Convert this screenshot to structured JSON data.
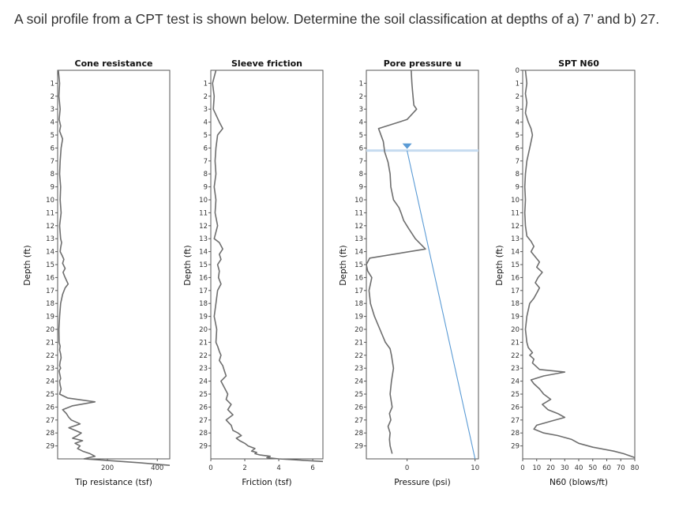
{
  "question": "A soil profile from a CPT test is shown below. Determine the soil classification at depths of a) 7’ and b) 27.",
  "colors": {
    "trace": "#6e6e6e",
    "hydrostatic": "#5b9bd5",
    "water_table": "#5b9bd5",
    "water_table_line": "#c6dcf0"
  },
  "chart_data": [
    {
      "type": "line",
      "title": "Cone resistance",
      "xlabel": "Tip resistance (tsf)",
      "ylabel": "Depth (ft)",
      "xlim": [
        0,
        450
      ],
      "ylim": [
        0,
        30
      ],
      "xticks": [
        {
          "v": 200,
          "label": "200"
        },
        {
          "v": 400,
          "label": "400"
        }
      ],
      "yticks": [
        1,
        2,
        3,
        4,
        5,
        6,
        7,
        8,
        9,
        10,
        11,
        12,
        13,
        14,
        15,
        16,
        17,
        18,
        19,
        20,
        21,
        22,
        23,
        24,
        25,
        26,
        27,
        28,
        29
      ],
      "series": [
        {
          "x": [
            3,
            8,
            5,
            10,
            6,
            12,
            8,
            20,
            14,
            10,
            8,
            12,
            10,
            14,
            8,
            12,
            16,
            12,
            10,
            18,
            25,
            20,
            30,
            22,
            28,
            35,
            42,
            30,
            20,
            12,
            8,
            5,
            6,
            10,
            8,
            12,
            14,
            10,
            8,
            12,
            6,
            8,
            10,
            12,
            8,
            10,
            14,
            8,
            40,
            150,
            60,
            20,
            35,
            45,
            55,
            90,
            45,
            70,
            95,
            80,
            60,
            100,
            70,
            90,
            80,
            100,
            130,
            150,
            105,
            180,
            330,
            450
          ],
          "y": [
            0,
            1,
            2,
            3,
            3.8,
            4.3,
            4.7,
            5.3,
            6,
            7,
            8,
            9,
            10,
            11,
            12,
            13,
            13.3,
            13.7,
            14,
            14.3,
            14.6,
            14.9,
            15.3,
            15.6,
            15.9,
            16.2,
            16.5,
            16.8,
            17.3,
            18,
            19,
            20,
            21,
            21.3,
            21.6,
            21.9,
            22.2,
            22.5,
            22.8,
            23,
            23.2,
            23.4,
            23.6,
            23.8,
            24,
            24.3,
            24.6,
            25,
            25.3,
            25.6,
            25.9,
            26.2,
            26.5,
            26.8,
            27,
            27.3,
            27.6,
            27.8,
            28,
            28.2,
            28.4,
            28.6,
            28.8,
            29,
            29.2,
            29.4,
            29.6,
            29.8,
            30,
            30.1,
            30.3,
            30.5
          ]
        }
      ]
    },
    {
      "type": "line",
      "title": "Sleeve friction",
      "xlabel": "Friction (tsf)",
      "ylabel": "Depth (ft)",
      "xlim": [
        0,
        6.6
      ],
      "ylim": [
        0,
        30
      ],
      "xticks": [
        {
          "v": 0,
          "label": "0"
        },
        {
          "v": 2,
          "label": "2"
        },
        {
          "v": 4,
          "label": "4"
        },
        {
          "v": 6,
          "label": "6"
        }
      ],
      "yticks": [
        1,
        2,
        3,
        4,
        5,
        6,
        7,
        8,
        9,
        10,
        11,
        12,
        13,
        14,
        15,
        16,
        17,
        18,
        19,
        20,
        21,
        22,
        23,
        24,
        25,
        26,
        27,
        28,
        29
      ],
      "series": [
        {
          "x": [
            0.3,
            0.1,
            0.2,
            0.15,
            0.5,
            0.7,
            0.4,
            0.3,
            0.25,
            0.3,
            0.2,
            0.3,
            0.25,
            0.4,
            0.2,
            0.5,
            0.7,
            0.5,
            0.6,
            0.4,
            0.5,
            0.45,
            0.6,
            0.4,
            0.3,
            0.2,
            0.35,
            0.3,
            0.4,
            0.5,
            0.6,
            0.5,
            0.7,
            0.8,
            0.9,
            0.6,
            0.8,
            1.0,
            0.9,
            1.2,
            1.0,
            1.3,
            0.9,
            1.2,
            1.3,
            1.6,
            1.8,
            1.5,
            1.7,
            2.0,
            2.2,
            2.6,
            2.4,
            2.7,
            2.6,
            2.9,
            3.5,
            3.3,
            4.0,
            6.6
          ],
          "y": [
            0,
            1,
            2,
            3,
            4,
            4.5,
            5,
            6,
            7,
            8,
            9,
            10,
            11,
            12,
            13,
            13.3,
            13.8,
            14.2,
            14.6,
            15,
            15.5,
            16,
            16.5,
            17,
            18,
            19,
            20,
            21,
            21.3,
            21.7,
            22,
            22.4,
            22.8,
            23.2,
            23.6,
            24,
            24.5,
            25,
            25.4,
            25.8,
            26.2,
            26.6,
            27,
            27.4,
            27.8,
            28,
            28.2,
            28.4,
            28.6,
            28.8,
            29,
            29.2,
            29.4,
            29.5,
            29.6,
            29.7,
            29.8,
            29.9,
            30,
            30.2
          ]
        }
      ]
    },
    {
      "type": "line",
      "title": "Pore pressure u",
      "xlabel": "Pressure (psi)",
      "ylabel": "Depth (ft)",
      "xlim": [
        -6,
        10.5
      ],
      "ylim": [
        0,
        30
      ],
      "xticks": [
        {
          "v": 0,
          "label": "0"
        },
        {
          "v": 10,
          "label": "10"
        }
      ],
      "yticks": [
        1,
        2,
        3,
        4,
        5,
        6,
        7,
        8,
        9,
        10,
        11,
        12,
        13,
        14,
        15,
        16,
        17,
        18,
        19,
        20,
        21,
        22,
        23,
        24,
        25,
        26,
        27,
        28,
        29
      ],
      "water_table_depth": 6.2,
      "series": [
        {
          "name": "",
          "x": [
            0.6,
            0.7,
            0.8,
            0.9,
            1.0,
            1.4,
            0,
            -4.2,
            -3.5,
            -3.3,
            -2.8,
            -2.5,
            -2.4,
            -2.0,
            -1.2,
            -0.9,
            -0.5,
            0.2,
            1.2,
            2.7,
            -5.5,
            -6.0,
            -5.8,
            -5.2,
            -5.6,
            -5.4,
            -4.8,
            -4.0,
            -3.2,
            -2.5,
            -2.3,
            -2.0,
            -2.3,
            -2.5,
            -2.2,
            -2.6,
            -2.4,
            -2.8,
            -2.5,
            -2.6,
            -2.5,
            -2.2
          ],
          "y": [
            0,
            1,
            1.6,
            2.2,
            2.7,
            3.0,
            3.8,
            4.5,
            5.5,
            6.3,
            7.1,
            8.0,
            9.0,
            10.0,
            10.6,
            11.0,
            11.6,
            12.2,
            13.0,
            13.8,
            14.5,
            15.0,
            15.5,
            16.0,
            17.0,
            18.0,
            19.0,
            20.0,
            21.0,
            21.5,
            22,
            23,
            24,
            25,
            26,
            26.5,
            27,
            27.5,
            28,
            28.5,
            29,
            29.6
          ]
        },
        {
          "name": "",
          "x": [
            0,
            10
          ],
          "y": [
            6.2,
            30
          ]
        }
      ]
    },
    {
      "type": "line",
      "title": "SPT N60",
      "xlabel": "N60 (blows/ft)",
      "ylabel": "Depth (ft)",
      "xlim": [
        0,
        80
      ],
      "ylim": [
        0,
        30
      ],
      "xticks": [
        {
          "v": 0,
          "label": "0"
        },
        {
          "v": 10,
          "label": "10"
        },
        {
          "v": 20,
          "label": "20"
        },
        {
          "v": 30,
          "label": "30"
        },
        {
          "v": 40,
          "label": "40"
        },
        {
          "v": 50,
          "label": "50"
        },
        {
          "v": 60,
          "label": "60"
        },
        {
          "v": 70,
          "label": "70"
        },
        {
          "v": 80,
          "label": "80"
        }
      ],
      "yticks": [
        0,
        1,
        2,
        3,
        4,
        5,
        6,
        7,
        8,
        9,
        10,
        11,
        12,
        13,
        14,
        15,
        16,
        17,
        18,
        19,
        20,
        21,
        22,
        23,
        24,
        25,
        26,
        27,
        28,
        29
      ],
      "series": [
        {
          "x": [
            2,
            3,
            2,
            3,
            2,
            4,
            6,
            7,
            5,
            3,
            2,
            1.5,
            2,
            1.5,
            2,
            3,
            6,
            8,
            6,
            9,
            12,
            10,
            14,
            11,
            9,
            12,
            10,
            8,
            5,
            3,
            2,
            3,
            4,
            7,
            5,
            8,
            7,
            10,
            12,
            30,
            15,
            6,
            8,
            12,
            15,
            20,
            14,
            18,
            25,
            30,
            20,
            10,
            8,
            15,
            25,
            35,
            40,
            50,
            65,
            72,
            80
          ],
          "y": [
            0,
            1,
            1.8,
            2.5,
            3.3,
            4.0,
            4.5,
            5,
            6,
            7,
            8,
            9,
            10,
            11,
            12,
            12.8,
            13.2,
            13.6,
            14,
            14.4,
            14.8,
            15.2,
            15.6,
            16,
            16.4,
            16.8,
            17.2,
            17.6,
            18,
            19,
            20,
            21,
            21.4,
            21.8,
            22,
            22.3,
            22.6,
            22.9,
            23.1,
            23.3,
            23.6,
            23.9,
            24.2,
            24.6,
            25,
            25.4,
            25.8,
            26.2,
            26.5,
            26.8,
            27.1,
            27.4,
            27.7,
            28,
            28.2,
            28.5,
            28.8,
            29.1,
            29.4,
            29.6,
            29.9
          ]
        }
      ]
    }
  ]
}
